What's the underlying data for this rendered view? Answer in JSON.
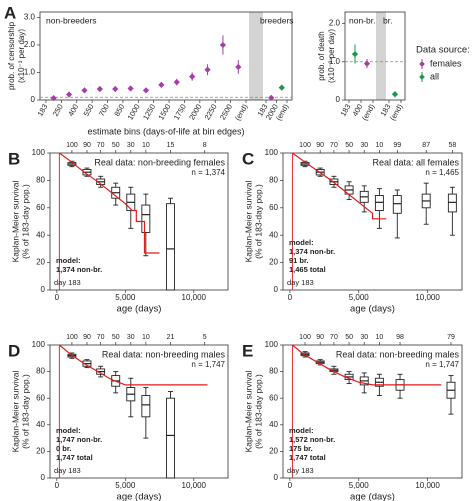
{
  "chart_data": [
    {
      "type": "binned-point",
      "panel_label": "A",
      "ylabel": [
        "prob. of censorship",
        "(x10⁻³ per day)"
      ],
      "xlabel": "estimate bins (days-of-life at bin edges)",
      "ylim": [
        0,
        3.2
      ],
      "yticks": [
        0,
        {
          "value": 1,
          "label": "1.0"
        },
        {
          "value": 2,
          "label": "2.0"
        },
        {
          "value": 3,
          "label": "3.0"
        }
      ],
      "reference_line": 0.1,
      "start_edge_color": "#e41a1c",
      "groups": [
        {
          "label": "non-breeders",
          "bin_edges": [
            "183",
            "250",
            "400",
            "550",
            "700",
            "850",
            "1000",
            "1250",
            "1500",
            "1750",
            "2000",
            "2250",
            "2500",
            "(end)"
          ],
          "series": [
            {
              "color": "#a83ca8",
              "values": [
                0.07,
                0.2,
                0.35,
                0.4,
                0.4,
                0.42,
                0.35,
                0.55,
                0.65,
                0.85,
                1.1,
                2.0,
                1.2
              ],
              "errors": [
                0.03,
                0.05,
                0.06,
                0.07,
                0.08,
                0.08,
                0.08,
                0.1,
                0.12,
                0.15,
                0.2,
                0.35,
                0.25
              ]
            }
          ]
        },
        {
          "label": "breeders",
          "bin_edges": [
            "183",
            "2000",
            "(end)"
          ],
          "series": [
            {
              "color": "#a83ca8",
              "values": [
                0.08,
                null
              ],
              "errors": [
                0.03,
                null
              ]
            },
            {
              "color": "#1a9850",
              "values": [
                null,
                0.45
              ],
              "errors": [
                null,
                0.04
              ]
            }
          ]
        }
      ]
    },
    {
      "type": "binned-point",
      "ylabel": [
        "prob. of death",
        "(x10⁻³ per day)"
      ],
      "ylim": [
        0,
        2.3
      ],
      "yticks": [
        0,
        {
          "value": 1,
          "label": "1.0"
        },
        {
          "value": 2,
          "label": "2.0"
        }
      ],
      "reference_line": 1,
      "start_edge_color": "#e41a1c",
      "legend_title": "Data source:",
      "groups": [
        {
          "label": "non-br.",
          "bin_edges": [
            "183",
            "400",
            "(end)"
          ],
          "series": [
            {
              "name": "females",
              "color": "#a83ca8",
              "values": [
                null,
                0.95
              ],
              "errors": [
                null,
                0.12
              ]
            },
            {
              "name": "all",
              "color": "#1a9850",
              "values": [
                1.2,
                null
              ],
              "errors": [
                0.25,
                null
              ]
            }
          ]
        },
        {
          "label": "br.",
          "bin_edges": [
            "183",
            "(end)"
          ],
          "series": [
            {
              "color": "#1a9850",
              "values": [
                0.15
              ],
              "errors": [
                0.08
              ]
            }
          ]
        }
      ]
    },
    {
      "type": "km",
      "panel_label": "B",
      "ylabel": [
        "Kaplan-Meier survival",
        "(% of 183-day pop.)"
      ],
      "xlabel": "age (days)",
      "xlim": [
        -500,
        12500
      ],
      "xticks": [
        0,
        {
          "value": 5000,
          "label": "5,000"
        },
        {
          "value": 10000,
          "label": "10,000"
        }
      ],
      "ylim": [
        0,
        100
      ],
      "yticks": [
        0,
        20,
        40,
        60,
        80,
        100
      ],
      "top_ticks": [
        {
          "value": 1100,
          "label": "100"
        },
        {
          "value": 2200,
          "label": "90"
        },
        {
          "value": 3200,
          "label": "70"
        },
        {
          "value": 4300,
          "label": "50"
        },
        {
          "value": 5400,
          "label": "30"
        },
        {
          "value": 6500,
          "label": "10"
        },
        {
          "value": 8300,
          "label": "15"
        },
        {
          "value": 10800,
          "label": "8"
        }
      ],
      "real_label": "Real data: non-breeding females",
      "real_n": "n = 1,374",
      "real_color": "#e41a1c",
      "real_x": [
        183,
        1000,
        2000,
        3000,
        4000,
        5000,
        5500,
        5800,
        5800,
        6400,
        6400,
        7500
      ],
      "real_y": [
        100,
        94,
        86,
        79,
        71,
        63,
        58,
        58,
        50,
        50,
        27,
        27
      ],
      "start_day": 183,
      "start_label": "day 183",
      "model_text": [
        "model:",
        "1,374 non-br."
      ],
      "boxes": {
        "x": [
          1100,
          2200,
          3200,
          4300,
          5400,
          6500,
          8300
        ],
        "median": [
          92,
          86,
          79,
          71,
          64,
          55,
          30
        ],
        "q1": [
          91,
          84,
          77,
          67,
          58,
          42,
          0
        ],
        "q3": [
          93,
          88,
          81,
          75,
          70,
          62,
          63
        ],
        "low": [
          90,
          83,
          75,
          62,
          45,
          25,
          0
        ],
        "high": [
          94,
          89,
          83,
          78,
          75,
          70,
          67
        ]
      }
    },
    {
      "type": "km",
      "panel_label": "C",
      "ylabel": [
        "Kaplan-Meier survival",
        "(% of 183-day pop.)"
      ],
      "xlabel": "age (days)",
      "xlim": [
        -500,
        12500
      ],
      "xticks": [
        0,
        {
          "value": 5000,
          "label": "5,000"
        },
        {
          "value": 10000,
          "label": "10,000"
        }
      ],
      "ylim": [
        0,
        100
      ],
      "yticks": [
        0,
        20,
        40,
        60,
        80,
        100
      ],
      "top_ticks": [
        {
          "value": 1100,
          "label": "100"
        },
        {
          "value": 2200,
          "label": "90"
        },
        {
          "value": 3200,
          "label": "70"
        },
        {
          "value": 4300,
          "label": "50"
        },
        {
          "value": 5400,
          "label": "30"
        },
        {
          "value": 6500,
          "label": "10"
        },
        {
          "value": 7800,
          "label": "99"
        },
        {
          "value": 9900,
          "label": "87"
        },
        {
          "value": 11800,
          "label": "58"
        }
      ],
      "real_label": "Real data: all females",
      "real_n": "n = 1,465",
      "real_color": "#e41a1c",
      "real_x": [
        183,
        1000,
        2000,
        3000,
        4000,
        5000,
        6000,
        6000,
        7000
      ],
      "real_y": [
        100,
        94,
        87,
        80,
        72,
        64,
        56,
        52,
        52
      ],
      "start_day": 183,
      "start_label": "day 183",
      "model_text": [
        "model:",
        "1,374 non-br.",
        "91 br.",
        "1,465 total"
      ],
      "boxes": {
        "x": [
          1100,
          2200,
          3200,
          4300,
          5400,
          6500,
          7800,
          9900,
          11800
        ],
        "median": [
          92,
          86,
          79,
          73,
          68,
          64,
          63,
          65,
          64
        ],
        "q1": [
          91,
          84,
          77,
          70,
          64,
          58,
          56,
          60,
          57
        ],
        "q3": [
          93,
          88,
          81,
          76,
          72,
          69,
          69,
          70,
          70
        ],
        "low": [
          90,
          83,
          75,
          66,
          57,
          45,
          38,
          48,
          40
        ],
        "high": [
          94,
          89,
          83,
          79,
          76,
          74,
          73,
          78,
          75
        ]
      }
    },
    {
      "type": "km",
      "panel_label": "D",
      "ylabel": [
        "Kaplan-Meier survival",
        "(% of 183-day pop.)"
      ],
      "xlabel": "age (days)",
      "xlim": [
        -500,
        12500
      ],
      "xticks": [
        0,
        {
          "value": 5000,
          "label": "5,000"
        },
        {
          "value": 10000,
          "label": "10,000"
        }
      ],
      "ylim": [
        0,
        100
      ],
      "yticks": [
        0,
        20,
        40,
        60,
        80,
        100
      ],
      "top_ticks": [
        {
          "value": 1100,
          "label": "100"
        },
        {
          "value": 2200,
          "label": "90"
        },
        {
          "value": 3200,
          "label": "70"
        },
        {
          "value": 4300,
          "label": "50"
        },
        {
          "value": 5400,
          "label": "30"
        },
        {
          "value": 6500,
          "label": "10"
        },
        {
          "value": 8300,
          "label": "21"
        },
        {
          "value": 10800,
          "label": "5"
        }
      ],
      "real_label": "Real data: non-breeding males",
      "real_n": "n = 1,747",
      "real_color": "#e41a1c",
      "real_x": [
        183,
        1000,
        2000,
        3000,
        4000,
        5000,
        5500,
        11000
      ],
      "real_y": [
        100,
        93,
        86,
        80,
        74,
        70,
        70,
        70
      ],
      "start_day": 183,
      "start_label": "day 183",
      "model_text": [
        "model:",
        "1,747 non-br.",
        "0 br.",
        "1,747 total"
      ],
      "boxes": {
        "x": [
          1100,
          2200,
          3200,
          4300,
          5400,
          6500,
          8300
        ],
        "median": [
          92,
          86,
          80,
          73,
          63,
          55,
          32
        ],
        "q1": [
          91,
          84,
          78,
          69,
          58,
          46,
          0
        ],
        "q3": [
          93,
          88,
          82,
          77,
          68,
          62,
          60
        ],
        "low": [
          90,
          83,
          76,
          64,
          46,
          30,
          0
        ],
        "high": [
          94,
          89,
          84,
          80,
          75,
          68,
          65
        ]
      }
    },
    {
      "type": "km",
      "panel_label": "E",
      "ylabel": [
        "Kaplan-Meier survival",
        "(% of 183-day pop.)"
      ],
      "xlabel": "age (days)",
      "xlim": [
        -500,
        12500
      ],
      "xticks": [
        0,
        {
          "value": 5000,
          "label": "5,000"
        },
        {
          "value": 10000,
          "label": "10,000"
        }
      ],
      "ylim": [
        0,
        100
      ],
      "yticks": [
        0,
        20,
        40,
        60,
        80,
        100
      ],
      "top_ticks": [
        {
          "value": 1100,
          "label": "100"
        },
        {
          "value": 2200,
          "label": "90"
        },
        {
          "value": 3200,
          "label": "70"
        },
        {
          "value": 4300,
          "label": "50"
        },
        {
          "value": 5400,
          "label": "30"
        },
        {
          "value": 6500,
          "label": "10"
        },
        {
          "value": 8000,
          "label": "98"
        },
        {
          "value": 11700,
          "label": "79"
        }
      ],
      "real_label": "Real data: non-breeding males",
      "real_n": "n = 1,747",
      "real_color": "#e41a1c",
      "real_x": [
        183,
        1000,
        2000,
        3000,
        4000,
        5000,
        6000,
        11000
      ],
      "real_y": [
        100,
        93,
        87,
        81,
        76,
        72,
        70,
        70
      ],
      "start_day": 183,
      "start_label": "day 183",
      "model_text": [
        "model:",
        "1,572 non-br.",
        "175 br.",
        "1,747 total"
      ],
      "boxes": {
        "x": [
          1100,
          2200,
          3200,
          4300,
          5400,
          6500,
          8000,
          11700
        ],
        "median": [
          93,
          87,
          81,
          76,
          73,
          72,
          70,
          66
        ],
        "q1": [
          92,
          86,
          80,
          74,
          70,
          69,
          66,
          60
        ],
        "q3": [
          94,
          88,
          82,
          78,
          76,
          75,
          74,
          72
        ],
        "low": [
          91,
          85,
          78,
          71,
          64,
          62,
          60,
          48
        ],
        "high": [
          95,
          89,
          84,
          80,
          79,
          78,
          78,
          77
        ]
      }
    }
  ]
}
